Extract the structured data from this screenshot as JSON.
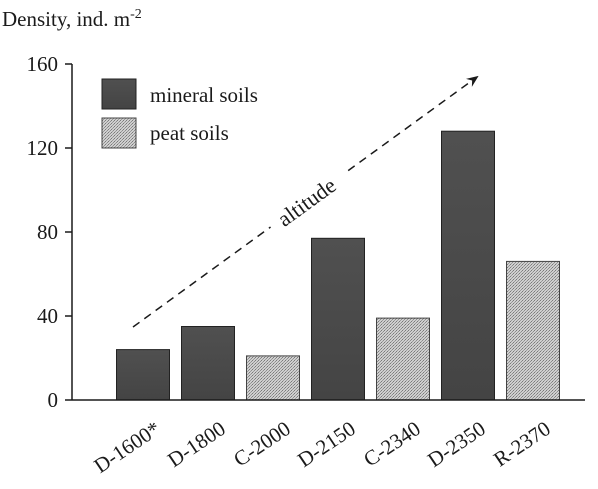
{
  "chart_data": {
    "type": "bar",
    "ylabel": "Density, ind. m",
    "ylabel_superscript": "-2",
    "xlabel": "",
    "ylim": [
      0,
      160
    ],
    "yticks": [
      0,
      40,
      80,
      120,
      160
    ],
    "grid": false,
    "categories": [
      "D-1600*",
      "D-1800",
      "C-2000",
      "D-2150",
      "C-2340",
      "D-2350",
      "R-2370"
    ],
    "values": [
      24,
      35,
      21,
      77,
      39,
      128,
      66
    ],
    "soil_type": [
      "mineral",
      "mineral",
      "peat",
      "mineral",
      "peat",
      "mineral",
      "peat"
    ],
    "legend": {
      "position": "top-left",
      "entries": [
        {
          "key": "mineral",
          "label": "mineral soils",
          "color": "#4a4a4a"
        },
        {
          "key": "peat",
          "label": "peat soils",
          "color": "#b8b8b8"
        }
      ]
    },
    "annotation": {
      "text": "altitude",
      "type": "dashed-arrow",
      "direction": "increasing-right"
    }
  }
}
